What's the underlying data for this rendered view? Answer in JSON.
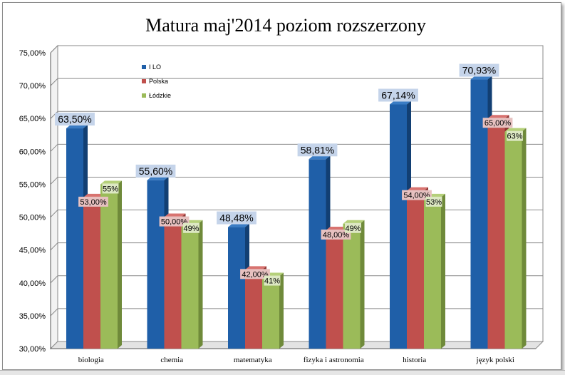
{
  "colors": {
    "series": [
      "#1f5fa8",
      "#c0504d",
      "#9bbb59"
    ],
    "series_dark": [
      "#123f73",
      "#8c3230",
      "#6f8a3a"
    ],
    "series_top": [
      "#3a7cc4",
      "#d87370",
      "#b5d07a"
    ],
    "label_bg": [
      "#c5d4ea",
      "#e7c1c0",
      "#dde8c3"
    ],
    "grid": "#8a8a8a"
  },
  "chart_data": {
    "type": "bar",
    "title": "Matura maj'2014 poziom rozszerzony",
    "categories": [
      "biologia",
      "chemia",
      "matematyka",
      "fizyka i astronomia",
      "historia",
      "język polski"
    ],
    "series": [
      {
        "name": "I LO",
        "values": [
          63.5,
          55.6,
          48.48,
          58.81,
          67.14,
          70.93
        ],
        "labels": [
          "63,50%",
          "55,60%",
          "48,48%",
          "58,81%",
          "67,14%",
          "70,93%"
        ]
      },
      {
        "name": "Polska",
        "values": [
          53.0,
          50.0,
          42.0,
          48.0,
          54.0,
          65.0
        ],
        "labels": [
          "53,00%",
          "50,00%",
          "42,00%",
          "48,00%",
          "54,00%",
          "65,00%"
        ]
      },
      {
        "name": "Łódzkie",
        "values": [
          55,
          49,
          41,
          49,
          53,
          63
        ],
        "labels": [
          "55%",
          "49%",
          "41%",
          "49%",
          "53%",
          "63%"
        ]
      }
    ],
    "yticks": [
      "30,00%",
      "35,00%",
      "40,00%",
      "45,00%",
      "50,00%",
      "55,00%",
      "60,00%",
      "65,00%",
      "70,00%",
      "75,00%"
    ],
    "ylim": [
      30,
      75
    ],
    "xlabel": "",
    "ylabel": "",
    "grid": true,
    "legend_position": "top-left-inside"
  }
}
